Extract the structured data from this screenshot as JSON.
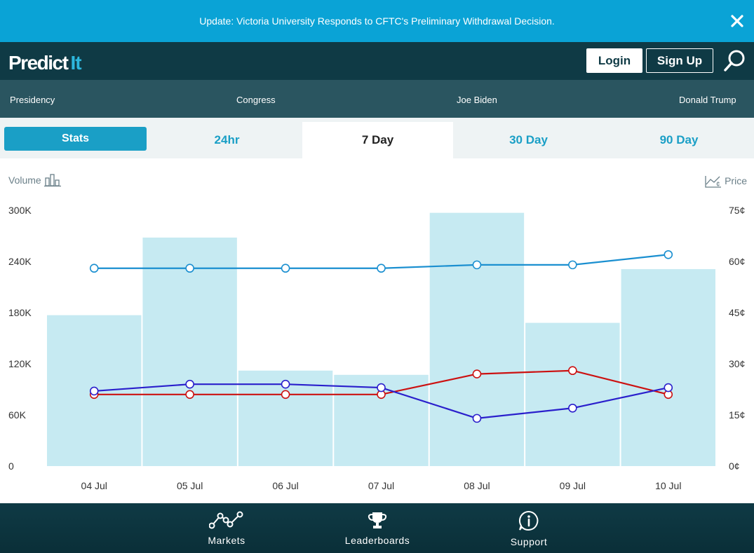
{
  "announcement": {
    "text": "Update: Victoria University Responds to CFTC's Preliminary Withdrawal Decision.",
    "close_icon": "close-icon"
  },
  "header": {
    "logo_predict": "Predict",
    "logo_it": "It",
    "login_label": "Login",
    "signup_label": "Sign Up",
    "search_icon": "search-icon"
  },
  "categories": [
    "Presidency",
    "Congress",
    "Joe Biden",
    "Donald Trump"
  ],
  "tabs": {
    "stats": "Stats",
    "items": [
      "24hr",
      "7 Day",
      "30 Day",
      "90 Day"
    ],
    "active": "7 Day"
  },
  "chart_legend": {
    "volume_label": "Volume",
    "price_label": "Price"
  },
  "chart_data": {
    "type": "bar",
    "categories": [
      "04 Jul",
      "05 Jul",
      "06 Jul",
      "07 Jul",
      "08 Jul",
      "09 Jul",
      "10 Jul"
    ],
    "volume": [
      177000,
      268000,
      112000,
      107000,
      297000,
      168000,
      231000
    ],
    "y_left": {
      "ylim": [
        0,
        300000
      ],
      "ticks": [
        0,
        60000,
        120000,
        180000,
        240000,
        300000
      ],
      "tick_labels": [
        "0",
        "60K",
        "120K",
        "180K",
        "240K",
        "300K"
      ]
    },
    "y_right": {
      "ylim": [
        0,
        75
      ],
      "ticks": [
        0,
        15,
        30,
        45,
        60,
        75
      ],
      "tick_labels": [
        "0¢",
        "15¢",
        "30¢",
        "45¢",
        "60¢",
        "75¢"
      ]
    },
    "series": [
      {
        "color": "#1a8fd0",
        "values": [
          58,
          58,
          58,
          58,
          59,
          59,
          62
        ]
      },
      {
        "color": "#cc1111",
        "values": [
          21,
          21,
          21,
          21,
          27,
          28,
          21
        ]
      },
      {
        "color": "#2a1fcc",
        "values": [
          22,
          24,
          24,
          23,
          14,
          17,
          23
        ]
      }
    ],
    "bar_color": "#c6eaf2",
    "grid": false
  },
  "bottom_nav": {
    "items": [
      {
        "label": "Markets",
        "icon": "markets-icon"
      },
      {
        "label": "Leaderboards",
        "icon": "trophy-icon"
      },
      {
        "label": "Support",
        "icon": "info-icon"
      }
    ]
  },
  "colors": {
    "announce_bg": "#0aa3d6",
    "header_bg": "#0f3a45",
    "nav_bg": "#2a5560",
    "accent": "#1a9fc6"
  }
}
